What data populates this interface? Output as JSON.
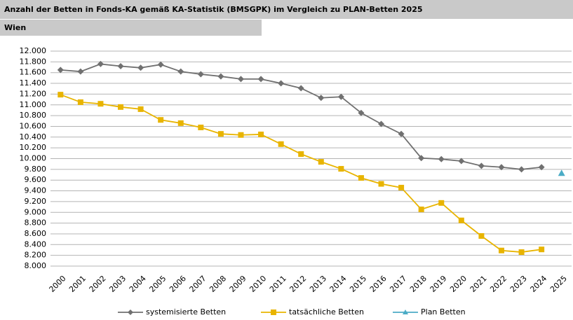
{
  "chart_data": {
    "type": "line",
    "title": "Anzahl der Betten in Fonds-KA gemäß KA-Statistik (BMSGPK) im Vergleich zu PLAN-Betten 2025",
    "subtitle": "Wien",
    "categories": [
      "2000",
      "2001",
      "2002",
      "2003",
      "2004",
      "2005",
      "2006",
      "2007",
      "2008",
      "2009",
      "2010",
      "2011",
      "2012",
      "2013",
      "2014",
      "2015",
      "2016",
      "2017",
      "2018",
      "2019",
      "2020",
      "2021",
      "2022",
      "2023",
      "2024",
      "2025"
    ],
    "series": [
      {
        "name": "systemisierte Betten",
        "color": "#707070",
        "marker": "diamond",
        "values": [
          11650,
          11620,
          11760,
          11720,
          11690,
          11750,
          11620,
          11570,
          11530,
          11480,
          11480,
          11400,
          11310,
          11130,
          11150,
          10850,
          10645,
          10460,
          10010,
          9990,
          9955,
          9865,
          9840,
          9800,
          9840,
          null
        ]
      },
      {
        "name": "tatsächliche Betten",
        "color": "#e8b400",
        "marker": "square",
        "values": [
          11190,
          11050,
          11020,
          10960,
          10920,
          10720,
          10660,
          10580,
          10460,
          10440,
          10450,
          10270,
          10085,
          9940,
          9810,
          9640,
          9530,
          9460,
          9055,
          9175,
          8850,
          8560,
          8290,
          8260,
          8310,
          null
        ]
      },
      {
        "name": "Plan Betten",
        "color": "#4bacc6",
        "marker": "triangle",
        "values": [
          null,
          null,
          null,
          null,
          null,
          null,
          null,
          null,
          null,
          null,
          null,
          null,
          null,
          null,
          null,
          null,
          null,
          null,
          null,
          null,
          null,
          null,
          null,
          null,
          null,
          9730
        ]
      }
    ],
    "ylim": [
      8000,
      12000
    ],
    "yticks": [
      {
        "value": 8000,
        "label": "8.000"
      },
      {
        "value": 8200,
        "label": "8.200"
      },
      {
        "value": 8400,
        "label": "8.400"
      },
      {
        "value": 8600,
        "label": "8.600"
      },
      {
        "value": 8800,
        "label": "8.800"
      },
      {
        "value": 9000,
        "label": "9.000"
      },
      {
        "value": 9200,
        "label": "9.200"
      },
      {
        "value": 9400,
        "label": "9.400"
      },
      {
        "value": 9600,
        "label": "9.600"
      },
      {
        "value": 9800,
        "label": "9.800"
      },
      {
        "value": 10000,
        "label": "10.000"
      },
      {
        "value": 10200,
        "label": "10.200"
      },
      {
        "value": 10400,
        "label": "10.400"
      },
      {
        "value": 10600,
        "label": "10.600"
      },
      {
        "value": 10800,
        "label": "10.800"
      },
      {
        "value": 11000,
        "label": "11.000"
      },
      {
        "value": 11200,
        "label": "11.200"
      },
      {
        "value": 11400,
        "label": "11.400"
      },
      {
        "value": 11600,
        "label": "11.600"
      },
      {
        "value": 11800,
        "label": "11.800"
      },
      {
        "value": 12000,
        "label": "12.000"
      }
    ],
    "grid": true,
    "legend": "bottom"
  }
}
